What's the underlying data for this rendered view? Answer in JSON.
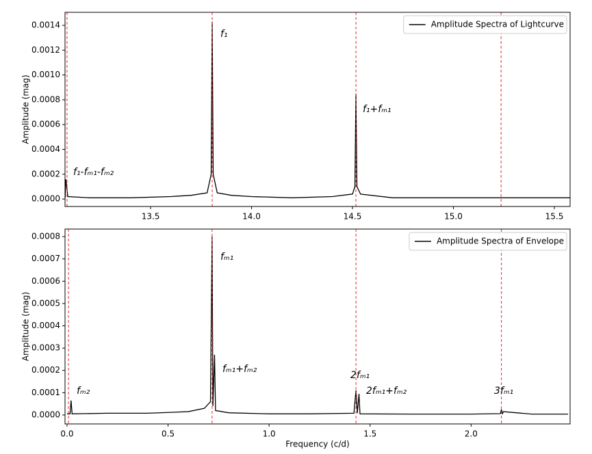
{
  "chart_data": [
    {
      "type": "line",
      "ylabel": "Amplitude (mag)",
      "xlim": [
        13.076,
        15.578
      ],
      "ylim": [
        -6e-05,
        0.001505
      ],
      "xticks": [
        {
          "value": 13.5,
          "label": "13.5"
        },
        {
          "value": 14.0,
          "label": "14.0"
        },
        {
          "value": 14.5,
          "label": "14.5"
        },
        {
          "value": 15.0,
          "label": "15.0"
        },
        {
          "value": 15.5,
          "label": "15.5"
        }
      ],
      "yticks": [
        {
          "value": 0,
          "label": "0.0000"
        },
        {
          "value": 0.0002,
          "label": "0.0002"
        },
        {
          "value": 0.0004,
          "label": "0.0004"
        },
        {
          "value": 0.0006,
          "label": "0.0006"
        },
        {
          "value": 0.0008,
          "label": "0.0008"
        },
        {
          "value": 0.001,
          "label": "0.0010"
        },
        {
          "value": 0.0012,
          "label": "0.0012"
        },
        {
          "value": 0.0014,
          "label": "0.0014"
        }
      ],
      "vlines": [
        13.086,
        13.805,
        14.517,
        15.236
      ],
      "vline_color": "#e8262b",
      "legend": "upper right",
      "series": [
        {
          "name": "Amplitude Spectra of Lightcurve",
          "color": "#000000",
          "x": [
            13.077,
            13.08,
            13.09,
            13.2,
            13.4,
            13.6,
            13.7,
            13.78,
            13.8,
            13.805,
            13.81,
            13.83,
            13.9,
            14.0,
            14.2,
            14.4,
            14.5,
            14.512,
            14.517,
            14.522,
            14.54,
            14.7,
            15.0,
            15.3,
            15.577
          ],
          "values": [
            1e-05,
            0.00016,
            2e-05,
            1e-05,
            1e-05,
            2e-05,
            3e-05,
            5e-05,
            0.0002,
            0.00143,
            0.0002,
            5e-05,
            3e-05,
            2e-05,
            1e-05,
            2e-05,
            4e-05,
            0.0001,
            0.00085,
            0.0001,
            4e-05,
            1e-05,
            1e-05,
            1e-05,
            1e-05
          ]
        }
      ],
      "annotations": [
        "f₁",
        "f₁+fₘ₁",
        "f₁-fₘ₁-fₘ₂"
      ]
    },
    {
      "type": "line",
      "ylabel": "Amplitude (mag)",
      "xlabel": "Frequency (c/d)",
      "xlim": [
        -0.01,
        2.49
      ],
      "ylim": [
        -4e-05,
        0.000834
      ],
      "xticks": [
        {
          "value": 0,
          "label": "0.0"
        },
        0.5,
        {
          "value": 1,
          "label": "1.0"
        },
        1.5,
        {
          "value": 2,
          "label": "2.0"
        }
      ],
      "yticks": [
        {
          "value": 0,
          "label": "0.0000"
        },
        {
          "value": 0.0001,
          "label": "0.0001"
        },
        {
          "value": 0.0002,
          "label": "0.0002"
        },
        {
          "value": 0.0003,
          "label": "0.0003"
        },
        {
          "value": 0.0004,
          "label": "0.0004"
        },
        {
          "value": 0.0005,
          "label": "0.0005"
        },
        {
          "value": 0.0006,
          "label": "0.0006"
        },
        {
          "value": 0.0007,
          "label": "0.0007"
        },
        {
          "value": 0.0008,
          "label": "0.0008"
        }
      ],
      "vlines": [
        0.007,
        0.718,
        1.43,
        2.15
      ],
      "vline_color": "#e8262b",
      "legend": "upper right",
      "series": [
        {
          "name": "Amplitude Spectra of Envelope",
          "color": "#000000",
          "x": [
            0.0,
            0.015,
            0.02,
            0.025,
            0.2,
            0.4,
            0.6,
            0.68,
            0.71,
            0.718,
            0.722,
            0.73,
            0.735,
            0.8,
            1.0,
            1.2,
            1.42,
            1.43,
            1.437,
            1.445,
            1.45,
            1.7,
            2.0,
            2.145,
            2.15,
            2.155,
            2.16,
            2.3,
            2.48
          ],
          "values": [
            5e-06,
            5e-06,
            6.5e-05,
            5e-06,
            8e-06,
            8e-06,
            1.5e-05,
            3e-05,
            6e-05,
            0.0008,
            4e-05,
            0.00027,
            2e-05,
            1e-05,
            5e-06,
            5e-06,
            8e-06,
            0.00011,
            8e-06,
            9.5e-05,
            5e-06,
            4e-06,
            4e-06,
            6e-06,
            2.5e-05,
            6e-06,
            1.5e-05,
            4e-06,
            4e-06
          ]
        }
      ],
      "annotations": [
        "fₘ₁",
        "fₘ₁+fₘ₂",
        "fₘ₂",
        "2fₘ₁",
        "2fₘ₁+fₘ₂",
        "3fₘ₁"
      ]
    }
  ]
}
